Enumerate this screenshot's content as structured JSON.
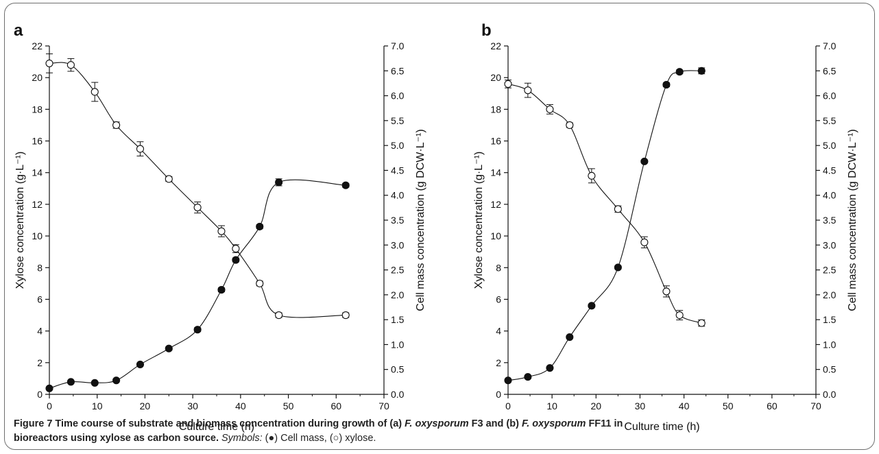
{
  "chart_data": [
    {
      "type": "line",
      "panel_label": "a",
      "xlabel": "Culture time (h)",
      "ylabel_left": "Xylose concentration (g·L⁻¹)",
      "ylabel_right": "Cell mass concentration (g DCW·L⁻¹)",
      "xlim": [
        0,
        70
      ],
      "ylim_left": [
        0,
        22
      ],
      "ylim_right": [
        0,
        7
      ],
      "xticks": [
        "0",
        "10",
        "20",
        "30",
        "40",
        "50",
        "60",
        "70"
      ],
      "yticks_left": [
        "0",
        "2",
        "4",
        "6",
        "8",
        "10",
        "12",
        "14",
        "16",
        "18",
        "20",
        "22"
      ],
      "yticks_right": [
        "0.0",
        "0.5",
        "1.0",
        "1.5",
        "2.0",
        "2.5",
        "3.0",
        "3.5",
        "4.0",
        "4.5",
        "5.0",
        "5.5",
        "6.0",
        "6.5",
        "7.0"
      ],
      "series": [
        {
          "name": "Cell mass",
          "marker": "filled-circle",
          "axis": "right",
          "x": [
            0,
            4.5,
            9.5,
            14,
            19,
            25,
            31,
            36,
            39,
            44,
            48,
            62
          ],
          "y": [
            0.12,
            0.25,
            0.23,
            0.28,
            0.6,
            0.92,
            1.3,
            2.1,
            2.7,
            3.37,
            4.26,
            4.2
          ],
          "err": [
            0.02,
            0.02,
            0.02,
            0.03,
            0.03,
            0.03,
            0.04,
            0.04,
            0.04,
            0.04,
            0.07,
            0.04
          ]
        },
        {
          "name": "xylose",
          "marker": "open-circle",
          "axis": "left",
          "x": [
            0,
            4.5,
            9.5,
            14,
            19,
            25,
            31,
            36,
            39,
            44,
            48,
            62
          ],
          "y": [
            20.9,
            20.8,
            19.1,
            17.0,
            15.5,
            13.6,
            11.8,
            10.3,
            9.2,
            7.0,
            5.0,
            5.0
          ],
          "err": [
            0.6,
            0.4,
            0.6,
            0.2,
            0.45,
            0.15,
            0.35,
            0.35,
            0.25,
            0.15,
            0.15,
            0.15
          ]
        }
      ]
    },
    {
      "type": "line",
      "panel_label": "b",
      "xlabel": "Culture time (h)",
      "ylabel_left": "Xylose concentration (g·L⁻¹)",
      "ylabel_right": "Cell mass concentration (g DCW·L⁻¹)",
      "xlim": [
        0,
        70
      ],
      "ylim_left": [
        0,
        22
      ],
      "ylim_right": [
        0,
        7
      ],
      "xticks": [
        "0",
        "10",
        "20",
        "30",
        "40",
        "50",
        "60",
        "70"
      ],
      "yticks_left": [
        "0",
        "2",
        "4",
        "6",
        "8",
        "10",
        "12",
        "14",
        "16",
        "18",
        "20",
        "22"
      ],
      "yticks_right": [
        "0.0",
        "0.5",
        "1.0",
        "1.5",
        "2.0",
        "2.5",
        "3.0",
        "3.5",
        "4.0",
        "4.5",
        "5.0",
        "5.5",
        "6.0",
        "6.5",
        "7.0"
      ],
      "series": [
        {
          "name": "Cell mass",
          "marker": "filled-circle",
          "axis": "right",
          "x": [
            0,
            4.5,
            9.5,
            14,
            19,
            25,
            31,
            36,
            39,
            44
          ],
          "y": [
            0.28,
            0.35,
            0.53,
            1.15,
            1.78,
            2.55,
            4.68,
            6.22,
            6.48,
            6.5
          ],
          "err": [
            0.02,
            0.02,
            0.02,
            0.03,
            0.03,
            0.03,
            0.03,
            0.04,
            0.04,
            0.06
          ]
        },
        {
          "name": "xylose",
          "marker": "open-circle",
          "axis": "left",
          "x": [
            0,
            4.5,
            9.5,
            14,
            19,
            25,
            31,
            36,
            39,
            44
          ],
          "y": [
            19.6,
            19.2,
            18.0,
            17.0,
            13.8,
            11.7,
            9.6,
            6.5,
            5.0,
            4.5
          ],
          "err": [
            0.25,
            0.45,
            0.3,
            0.15,
            0.45,
            0.2,
            0.35,
            0.35,
            0.3,
            0.2
          ]
        }
      ]
    }
  ],
  "caption": {
    "bold_prefix": "Figure 7 Time course of substrate and biomass concentration during growth of (a) ",
    "species_a": "F. oxysporum",
    "strain_a": " F3 and (b) ",
    "species_b": "F. oxysporum",
    "strain_b_line1": " FF11 in",
    "line2_bold": "bioreactors using xylose as carbon source.",
    "symbols_label": "Symbols:",
    "symbols_text": " (●) Cell mass, (○) xylose."
  }
}
